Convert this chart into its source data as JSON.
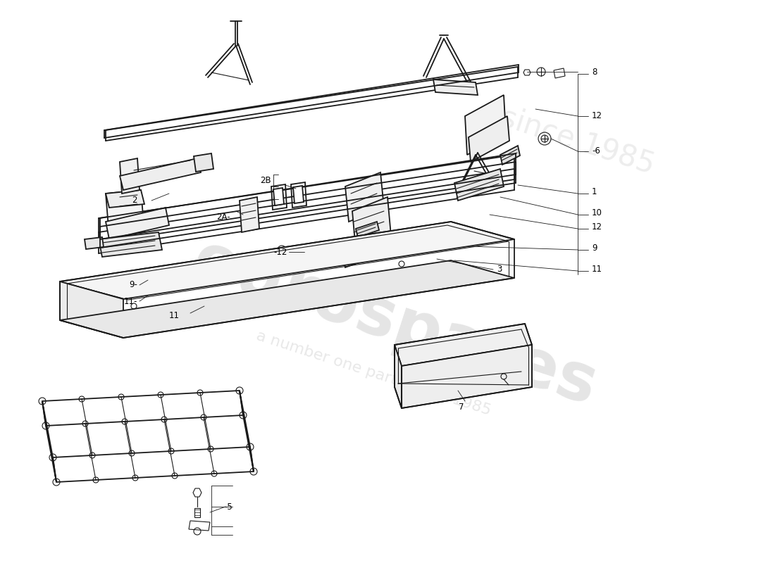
{
  "figsize": [
    11.0,
    8.0
  ],
  "dpi": 100,
  "bg": "#ffffff",
  "lc": "#1a1a1a",
  "wm1": "eurospares",
  "wm2": "a number one parts since 1985",
  "wm3": "since 1985"
}
